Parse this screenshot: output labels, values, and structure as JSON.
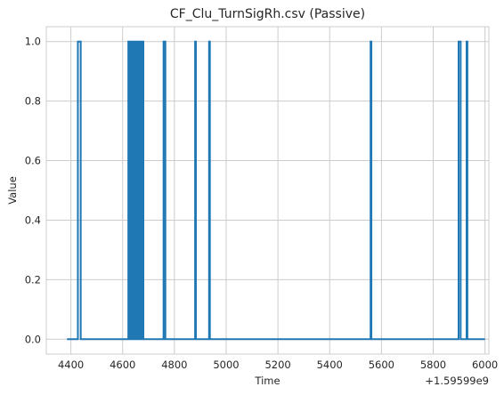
{
  "chart_data": {
    "type": "line",
    "title": "CF_Clu_TurnSigRh.csv (Passive)",
    "xlabel": "Time",
    "ylabel": "Value",
    "x_offset_label": "+1.59599e9",
    "xlim": [
      4305,
      6015
    ],
    "ylim": [
      -0.05,
      1.05
    ],
    "x_ticks": [
      4400,
      4600,
      4800,
      5000,
      5200,
      5400,
      5600,
      5800,
      6000
    ],
    "y_ticks": [
      0.0,
      0.2,
      0.4,
      0.6,
      0.8,
      1.0
    ],
    "x_tick_labels": [
      "4400",
      "4600",
      "4800",
      "5000",
      "5200",
      "5400",
      "5600",
      "5800",
      "6000"
    ],
    "y_tick_labels": [
      "0.0",
      "0.2",
      "0.4",
      "0.6",
      "0.8",
      "1.0"
    ],
    "grid": true,
    "line_color": "#1f77b4",
    "pulses": [
      [
        4427,
        4438
      ],
      [
        4622,
        4626
      ],
      [
        4628,
        4632
      ],
      [
        4634,
        4638
      ],
      [
        4640,
        4645
      ],
      [
        4647,
        4651
      ],
      [
        4653,
        4657
      ],
      [
        4659,
        4663
      ],
      [
        4665,
        4669
      ],
      [
        4671,
        4675
      ],
      [
        4677,
        4680
      ],
      [
        4758,
        4765
      ],
      [
        4880,
        4883
      ],
      [
        4934,
        4937
      ],
      [
        5558,
        5561
      ],
      [
        5898,
        5906
      ],
      [
        5929,
        5932
      ]
    ],
    "series": [
      {
        "x": [
          4385,
          6000
        ],
        "baseline": 0,
        "high": 1
      }
    ]
  }
}
